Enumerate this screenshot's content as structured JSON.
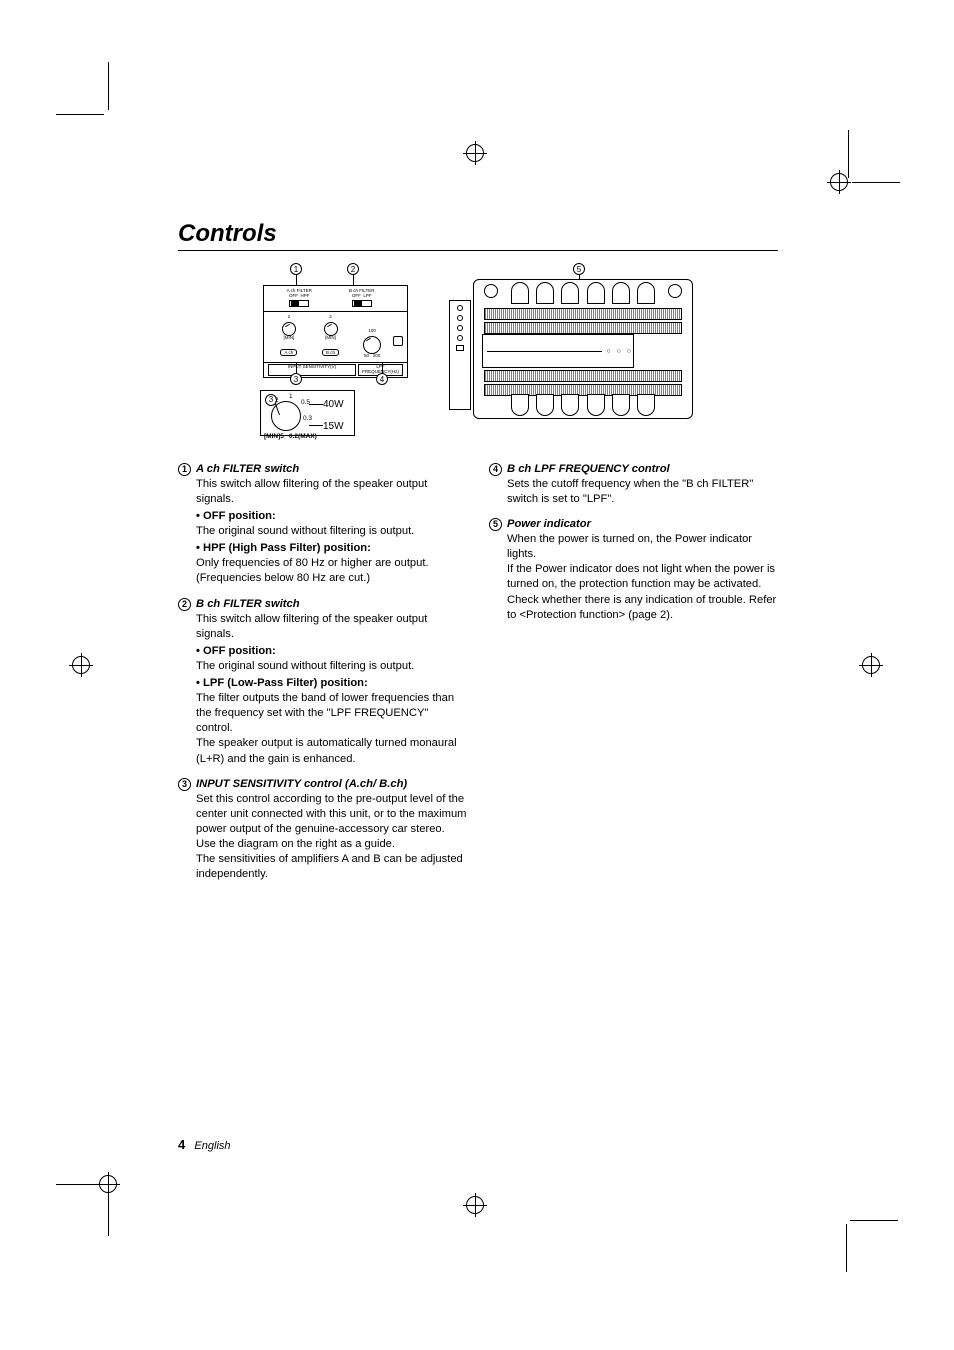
{
  "heading": "Controls",
  "panel": {
    "ach_filter_label": "A ch FILTER",
    "bch_filter_label": "B ch FILTER",
    "off": "OFF",
    "hpf": "HPF",
    "lpf": "LPF",
    "min": "[MIN]",
    "max": "0.2(MAX)",
    "ach_box": "A ch",
    "bch_box": "B ch",
    "input_sens": "INPUT SENSITIVITY(V)",
    "lpf_freq": "LPF FREQUENCY(Hz)",
    "freq_lo": "50",
    "freq_mid": "100",
    "freq_hi": "200",
    "tick_2": "2",
    "tick_1": "1",
    "tick_05": "0.5",
    "tick_03": "0.3"
  },
  "sens_detail": {
    "num": "3",
    "t2": "2",
    "t1": "1",
    "t05": "0.5",
    "t03": "0.3",
    "min": "[MIN]5",
    "max": "0.2(MAX)",
    "w40": "40W",
    "w15": "15W"
  },
  "items": [
    {
      "num": "1",
      "title": "A ch FILTER switch",
      "body": "This switch allow filtering of the speaker output signals.",
      "subs": [
        {
          "t": "OFF position:",
          "b": "The original sound without filtering is output."
        },
        {
          "t": "HPF (High Pass Filter) position:",
          "b": "Only frequencies of 80 Hz or higher are output. (Frequencies below 80 Hz are cut.)"
        }
      ]
    },
    {
      "num": "2",
      "title": "B ch FILTER switch",
      "body": "This switch allow filtering of the speaker output signals.",
      "subs": [
        {
          "t": "OFF position:",
          "b": "The original sound without filtering is output."
        },
        {
          "t": "LPF (Low-Pass Filter) position:",
          "b": "The filter outputs the band of lower frequencies than the frequency set with the \"LPF FREQUENCY\" control.\nThe speaker output is automatically turned monaural (L+R) and the gain is enhanced."
        }
      ]
    },
    {
      "num": "3",
      "title": "INPUT SENSITIVITY control (A.ch/ B.ch)",
      "body": "Set this control according to the pre-output level of the center unit connected with this unit, or to the maximum power output of the genuine-accessory car stereo.\nUse the diagram on the right as a guide.\nThe sensitivities of amplifiers A and B can be adjusted independently.",
      "subs": []
    }
  ],
  "items_r": [
    {
      "num": "4",
      "title": "B ch LPF FREQUENCY control",
      "body": "Sets the cutoff frequency when the \"B ch FILTER\" switch is set to \"LPF\".",
      "subs": []
    },
    {
      "num": "5",
      "title": "Power indicator",
      "body": "When the power is turned on, the Power indicator lights.\nIf the Power indicator does not light when the power is turned on, the protection function may be activated. Check whether there is any indication of trouble. Refer to <Protection function> (page 2).",
      "subs": []
    }
  ],
  "footer": {
    "page": "4",
    "lang": "English"
  },
  "callouts": {
    "c1": "1",
    "c2": "2",
    "c3": "3",
    "c4": "4",
    "c5": "5"
  }
}
